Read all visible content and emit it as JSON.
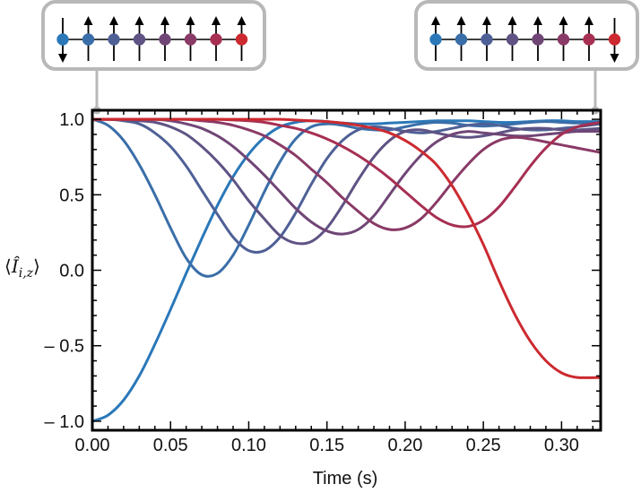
{
  "chart_data": {
    "type": "line",
    "title": "",
    "xlabel": "Time (s)",
    "ylabel": "⟨Î_i,z⟩",
    "ylabel_parts": {
      "open": "⟨",
      "symbol": "Î",
      "subscript": "i,z",
      "close": "⟩"
    },
    "xlim": [
      0,
      0.325
    ],
    "ylim": [
      -1.06,
      1.06
    ],
    "x_ticks": [
      0.0,
      0.05,
      0.1,
      0.15,
      0.2,
      0.25,
      0.3
    ],
    "x_tick_labels": [
      "0.00",
      "0.05",
      "0.10",
      "0.15",
      "0.20",
      "0.25",
      "0.30"
    ],
    "y_ticks": [
      1.0,
      0.5,
      0.0,
      -0.5,
      -1.0
    ],
    "y_tick_labels": [
      "1.0",
      "0.5",
      "0.0",
      "– 0.5",
      "– 1.0"
    ],
    "grid": false,
    "legend": "none",
    "series_colors": [
      "#2a78b8",
      "#3a6ea8",
      "#4e6096",
      "#5f5384",
      "#704676",
      "#8a3a66",
      "#a72f52",
      "#cc2a30"
    ],
    "series": [
      {
        "x": [
          0,
          0.01,
          0.02,
          0.03,
          0.04,
          0.05,
          0.06,
          0.07,
          0.08,
          0.09,
          0.1,
          0.11,
          0.12,
          0.13,
          0.14,
          0.15,
          0.16,
          0.17,
          0.18,
          0.19,
          0.2,
          0.21,
          0.22,
          0.23,
          0.24,
          0.25,
          0.26,
          0.27,
          0.28,
          0.29,
          0.3,
          0.31,
          0.325
        ],
        "values": [
          -1.0,
          -0.96,
          -0.86,
          -0.7,
          -0.49,
          -0.26,
          -0.02,
          0.21,
          0.43,
          0.62,
          0.77,
          0.88,
          0.95,
          0.98,
          0.99,
          0.985,
          0.975,
          0.97,
          0.97,
          0.975,
          0.98,
          0.985,
          0.99,
          0.99,
          0.99,
          0.985,
          0.98,
          0.98,
          0.985,
          0.99,
          0.99,
          0.985,
          0.985
        ]
      },
      {
        "x": [
          0,
          0.01,
          0.02,
          0.03,
          0.04,
          0.05,
          0.06,
          0.07,
          0.08,
          0.09,
          0.1,
          0.11,
          0.12,
          0.13,
          0.14,
          0.15,
          0.16,
          0.17,
          0.18,
          0.19,
          0.2,
          0.21,
          0.22,
          0.23,
          0.24,
          0.25,
          0.26,
          0.27,
          0.28,
          0.29,
          0.3,
          0.31,
          0.325
        ],
        "values": [
          1.0,
          0.96,
          0.86,
          0.7,
          0.5,
          0.28,
          0.08,
          -0.03,
          -0.02,
          0.1,
          0.3,
          0.52,
          0.72,
          0.87,
          0.95,
          0.97,
          0.96,
          0.94,
          0.93,
          0.93,
          0.95,
          0.97,
          0.98,
          0.975,
          0.96,
          0.955,
          0.96,
          0.97,
          0.98,
          0.985,
          0.98,
          0.975,
          0.975
        ]
      },
      {
        "x": [
          0,
          0.01,
          0.02,
          0.03,
          0.04,
          0.05,
          0.06,
          0.07,
          0.08,
          0.09,
          0.1,
          0.11,
          0.12,
          0.13,
          0.14,
          0.15,
          0.16,
          0.17,
          0.18,
          0.19,
          0.2,
          0.21,
          0.22,
          0.23,
          0.24,
          0.25,
          0.26,
          0.27,
          0.28,
          0.29,
          0.3,
          0.31,
          0.325
        ],
        "values": [
          1.0,
          1.0,
          0.99,
          0.97,
          0.91,
          0.82,
          0.69,
          0.53,
          0.37,
          0.22,
          0.13,
          0.13,
          0.22,
          0.38,
          0.57,
          0.74,
          0.86,
          0.93,
          0.95,
          0.94,
          0.92,
          0.91,
          0.92,
          0.94,
          0.96,
          0.97,
          0.96,
          0.94,
          0.93,
          0.93,
          0.94,
          0.95,
          0.97
        ]
      },
      {
        "x": [
          0,
          0.01,
          0.02,
          0.03,
          0.04,
          0.05,
          0.06,
          0.07,
          0.08,
          0.09,
          0.1,
          0.11,
          0.12,
          0.13,
          0.14,
          0.15,
          0.16,
          0.17,
          0.18,
          0.19,
          0.2,
          0.21,
          0.22,
          0.23,
          0.24,
          0.25,
          0.26,
          0.27,
          0.28,
          0.29,
          0.3,
          0.31,
          0.325
        ],
        "values": [
          1.0,
          1.0,
          1.0,
          0.99,
          0.98,
          0.95,
          0.9,
          0.82,
          0.72,
          0.6,
          0.46,
          0.34,
          0.23,
          0.18,
          0.19,
          0.28,
          0.43,
          0.6,
          0.75,
          0.86,
          0.92,
          0.93,
          0.91,
          0.89,
          0.88,
          0.89,
          0.91,
          0.93,
          0.94,
          0.94,
          0.93,
          0.93,
          0.94
        ]
      },
      {
        "x": [
          0,
          0.01,
          0.02,
          0.03,
          0.04,
          0.05,
          0.06,
          0.07,
          0.08,
          0.09,
          0.1,
          0.11,
          0.12,
          0.13,
          0.14,
          0.15,
          0.16,
          0.17,
          0.18,
          0.19,
          0.2,
          0.21,
          0.22,
          0.23,
          0.24,
          0.25,
          0.26,
          0.27,
          0.28,
          0.29,
          0.3,
          0.31,
          0.325
        ],
        "values": [
          1.0,
          1.0,
          1.0,
          1.0,
          1.0,
          0.99,
          0.97,
          0.94,
          0.89,
          0.82,
          0.73,
          0.63,
          0.52,
          0.41,
          0.32,
          0.26,
          0.24,
          0.27,
          0.36,
          0.5,
          0.64,
          0.76,
          0.85,
          0.9,
          0.92,
          0.91,
          0.9,
          0.89,
          0.89,
          0.9,
          0.91,
          0.92,
          0.92
        ]
      },
      {
        "x": [
          0,
          0.01,
          0.02,
          0.03,
          0.04,
          0.05,
          0.06,
          0.07,
          0.08,
          0.09,
          0.1,
          0.11,
          0.12,
          0.13,
          0.14,
          0.15,
          0.16,
          0.17,
          0.18,
          0.19,
          0.2,
          0.21,
          0.22,
          0.23,
          0.24,
          0.25,
          0.26,
          0.27,
          0.28,
          0.29,
          0.3,
          0.31,
          0.325
        ],
        "values": [
          1.0,
          1.0,
          1.0,
          1.0,
          1.0,
          1.0,
          1.0,
          0.99,
          0.98,
          0.96,
          0.93,
          0.89,
          0.83,
          0.76,
          0.67,
          0.58,
          0.48,
          0.39,
          0.31,
          0.27,
          0.28,
          0.34,
          0.45,
          0.58,
          0.7,
          0.8,
          0.86,
          0.88,
          0.87,
          0.85,
          0.83,
          0.81,
          0.78
        ]
      },
      {
        "x": [
          0,
          0.01,
          0.02,
          0.03,
          0.04,
          0.05,
          0.06,
          0.07,
          0.08,
          0.09,
          0.1,
          0.11,
          0.12,
          0.13,
          0.14,
          0.15,
          0.16,
          0.17,
          0.18,
          0.19,
          0.2,
          0.21,
          0.22,
          0.23,
          0.24,
          0.25,
          0.26,
          0.27,
          0.28,
          0.29,
          0.3,
          0.31,
          0.325
        ],
        "values": [
          1.0,
          1.0,
          1.0,
          1.0,
          1.0,
          1.0,
          1.0,
          1.0,
          1.0,
          0.995,
          0.99,
          0.98,
          0.96,
          0.94,
          0.91,
          0.87,
          0.82,
          0.76,
          0.69,
          0.61,
          0.52,
          0.43,
          0.35,
          0.3,
          0.29,
          0.33,
          0.42,
          0.55,
          0.69,
          0.81,
          0.9,
          0.95,
          0.98
        ]
      },
      {
        "x": [
          0,
          0.01,
          0.02,
          0.03,
          0.04,
          0.05,
          0.06,
          0.07,
          0.08,
          0.09,
          0.1,
          0.11,
          0.12,
          0.13,
          0.14,
          0.15,
          0.16,
          0.17,
          0.18,
          0.19,
          0.2,
          0.21,
          0.22,
          0.23,
          0.24,
          0.25,
          0.26,
          0.27,
          0.28,
          0.29,
          0.3,
          0.31,
          0.325
        ],
        "values": [
          1.0,
          1.0,
          1.0,
          1.0,
          1.0,
          1.0,
          1.0,
          1.0,
          1.0,
          1.0,
          1.0,
          1.0,
          1.0,
          0.995,
          0.99,
          0.985,
          0.975,
          0.96,
          0.94,
          0.91,
          0.86,
          0.79,
          0.7,
          0.56,
          0.38,
          0.17,
          -0.07,
          -0.29,
          -0.47,
          -0.6,
          -0.68,
          -0.71,
          -0.71
        ]
      }
    ],
    "insets": [
      {
        "colors": [
          "#2a78b8",
          "#3a6ea8",
          "#4e6096",
          "#5f5384",
          "#704676",
          "#8a3a66",
          "#a72f52",
          "#cc2a30"
        ],
        "spins": [
          "down",
          "up",
          "up",
          "up",
          "up",
          "up",
          "up",
          "up"
        ]
      },
      {
        "colors": [
          "#2a78b8",
          "#3a6ea8",
          "#4e6096",
          "#5f5384",
          "#704676",
          "#8a3a66",
          "#a72f52",
          "#cc2a30"
        ],
        "spins": [
          "up",
          "up",
          "up",
          "up",
          "up",
          "up",
          "up",
          "down"
        ]
      }
    ]
  }
}
